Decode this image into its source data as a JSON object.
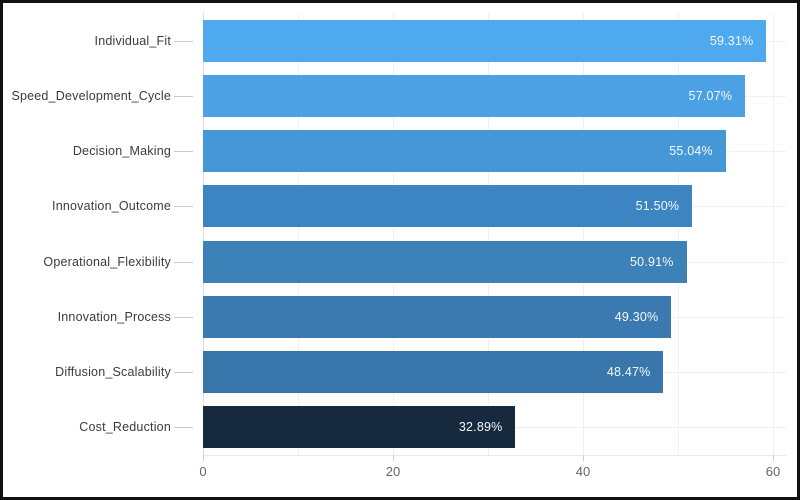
{
  "chart_data": {
    "type": "bar",
    "orientation": "horizontal",
    "title": "",
    "xlabel": "",
    "ylabel": "",
    "categories": [
      "Individual_Fit",
      "Speed_Development_Cycle",
      "Decision_Making",
      "Innovation_Outcome",
      "Operational_Flexibility",
      "Innovation_Process",
      "Diffusion_Scalability",
      "Cost_Reduction"
    ],
    "values": [
      59.31,
      57.07,
      55.04,
      51.5,
      50.91,
      49.3,
      48.47,
      32.89
    ],
    "value_labels": [
      "59.31%",
      "57.07%",
      "55.04%",
      "51.50%",
      "50.91%",
      "49.30%",
      "48.47%",
      "32.89%"
    ],
    "value_label_position": "inside-end",
    "bar_colors": [
      "#4ea9ef",
      "#4ba1e3",
      "#4697d5",
      "#3d85c2",
      "#3d81b9",
      "#3a7ab0",
      "#3976ab",
      "#16293d"
    ],
    "x_ticks": [
      0,
      20,
      40,
      60
    ],
    "x_tick_labels": [
      "0",
      "20",
      "40",
      "60"
    ],
    "x_minor_gridlines": [
      10,
      30,
      50
    ],
    "xlim": [
      0,
      61.4
    ],
    "grid": true,
    "legend": false,
    "plot_background": "#ffffff"
  },
  "colors": {
    "frame_border": "#111111",
    "gridline": "#f0f0f0",
    "zero_line": "#dcdcdc",
    "category_label": "#3b3b3b",
    "tick_label": "#666666",
    "value_label": "#f5f8fb"
  }
}
